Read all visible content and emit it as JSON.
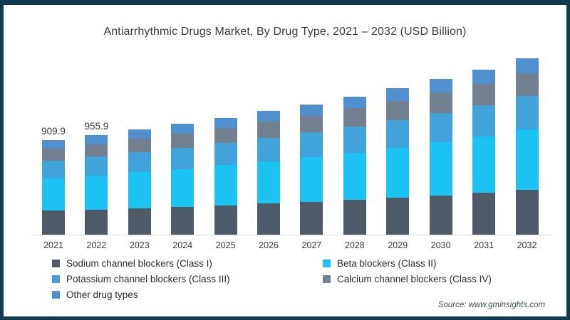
{
  "title": "Antiarrhythmic Drugs Market, By Drug Type, 2021 – 2032 (USD Billion)",
  "source": "Source: www.gminsights.com",
  "chart_data": {
    "type": "bar",
    "stacked": true,
    "unit": "USD Billion",
    "title": "Antiarrhythmic Drugs Market, By Drug Type, 2021 – 2032 (USD Billion)",
    "xlabel": "",
    "ylabel": "",
    "grid": false,
    "legend_position": "bottom",
    "categories": [
      "2021",
      "2022",
      "2023",
      "2024",
      "2025",
      "2026",
      "2027",
      "2028",
      "2029",
      "2030",
      "2031",
      "2032"
    ],
    "bar_labels": [
      "909.9",
      "955.9",
      "",
      "",
      "",
      "",
      "",
      "",
      "",
      "",
      "",
      ""
    ],
    "totals": [
      909.9,
      955.9,
      1010,
      1065,
      1125,
      1190,
      1255,
      1330,
      1410,
      1495,
      1590,
      1700
    ],
    "series": [
      {
        "name": "Sodium channel blockers (Class I)",
        "color": "#4e5a67",
        "values": [
          230,
          242,
          255,
          269,
          284,
          301,
          317,
          336,
          356,
          378,
          402,
          430
        ]
      },
      {
        "name": "Beta blockers (Class II)",
        "color": "#1cc3f2",
        "values": [
          311,
          327,
          344,
          363,
          384,
          406,
          428,
          454,
          481,
          510,
          542,
          580
        ]
      },
      {
        "name": "Potassium channel blockers (Class III)",
        "color": "#41a3da",
        "values": [
          172,
          181,
          192,
          202,
          214,
          226,
          238,
          253,
          268,
          284,
          302,
          323
        ]
      },
      {
        "name": "Calcium channel blockers (Class IV)",
        "color": "#72808f",
        "values": [
          116,
          122,
          131,
          138,
          146,
          155,
          163,
          173,
          183,
          194,
          207,
          221
        ]
      },
      {
        "name": "Other drug types",
        "color": "#5190ce",
        "values": [
          81,
          84,
          88,
          93,
          97,
          102,
          109,
          114,
          122,
          129,
          137,
          146
        ]
      }
    ],
    "notes": "Only 2021 and 2022 bars carry data labels; remaining totals estimated from bar heights. Stack order bottom-to-top: Class I, Class II, Class III, Class IV, Other."
  },
  "colors": {
    "frame_border": "#0f3a50",
    "axis_line": "#dcdcdc",
    "title_text": "#3d3d3d",
    "source_text": "#3c4c59"
  }
}
